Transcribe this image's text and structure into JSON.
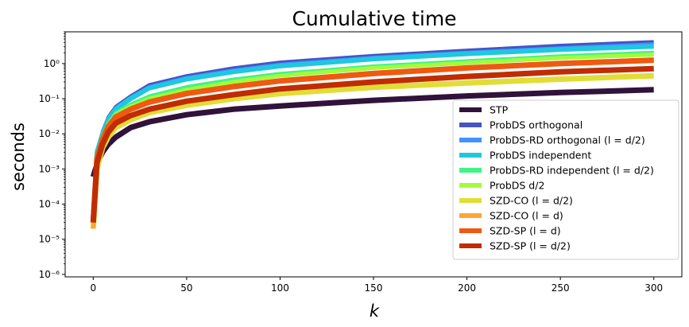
{
  "chart_data": {
    "type": "line",
    "title": "Cumulative time",
    "xlabel": "k",
    "ylabel": "seconds",
    "xlim": [
      -15,
      315
    ],
    "ylim": [
      8.5e-07,
      8
    ],
    "yscale": "log",
    "x_ticks": [
      0,
      50,
      100,
      150,
      200,
      250,
      300
    ],
    "y_ticks": [
      {
        "value": 1e-06,
        "label": "10⁻⁶"
      },
      {
        "value": 1e-05,
        "label": "10⁻⁵"
      },
      {
        "value": 0.0001,
        "label": "10⁻⁴"
      },
      {
        "value": 0.001,
        "label": "10⁻³"
      },
      {
        "value": 0.01,
        "label": "10⁻²"
      },
      {
        "value": 0.1,
        "label": "10⁻¹"
      },
      {
        "value": 1,
        "label": "10⁰"
      }
    ],
    "grid": false,
    "legend_position": "lower-right",
    "series": [
      {
        "name": "STP",
        "color": "#30123b",
        "width": 7,
        "points": [
          [
            0,
            0.0006
          ],
          [
            1,
            0.0009
          ],
          [
            2,
            0.0013
          ],
          [
            3,
            0.0018
          ],
          [
            5,
            0.003
          ],
          [
            8,
            0.005
          ],
          [
            12,
            0.008
          ],
          [
            20,
            0.015
          ],
          [
            30,
            0.022
          ],
          [
            50,
            0.035
          ],
          [
            75,
            0.05
          ],
          [
            100,
            0.062
          ],
          [
            150,
            0.09
          ],
          [
            200,
            0.12
          ],
          [
            250,
            0.15
          ],
          [
            300,
            0.18
          ]
        ]
      },
      {
        "name": "ProbDS orthogonal",
        "color": "#4454c4",
        "width": 4,
        "points": [
          [
            0,
            2e-05
          ],
          [
            2,
            0.003
          ],
          [
            5,
            0.012
          ],
          [
            8,
            0.03
          ],
          [
            12,
            0.06
          ],
          [
            20,
            0.12
          ],
          [
            30,
            0.25
          ],
          [
            50,
            0.45
          ],
          [
            75,
            0.75
          ],
          [
            100,
            1.1
          ],
          [
            150,
            1.7
          ],
          [
            200,
            2.4
          ],
          [
            250,
            3.3
          ],
          [
            300,
            4.2
          ]
        ]
      },
      {
        "name": "ProbDS-RD orthogonal (l = d/2)",
        "color": "#4490fe",
        "width": 4,
        "points": [
          [
            0,
            2e-05
          ],
          [
            2,
            0.003
          ],
          [
            5,
            0.011
          ],
          [
            8,
            0.028
          ],
          [
            12,
            0.055
          ],
          [
            20,
            0.11
          ],
          [
            30,
            0.22
          ],
          [
            50,
            0.4
          ],
          [
            75,
            0.65
          ],
          [
            100,
            0.95
          ],
          [
            150,
            1.5
          ],
          [
            200,
            2.1
          ],
          [
            250,
            2.8
          ],
          [
            300,
            3.6
          ]
        ]
      },
      {
        "name": "ProbDS independent",
        "color": "#1fc8de",
        "width": 6,
        "points": [
          [
            0,
            2e-05
          ],
          [
            2,
            0.003
          ],
          [
            5,
            0.01
          ],
          [
            8,
            0.025
          ],
          [
            12,
            0.05
          ],
          [
            20,
            0.1
          ],
          [
            30,
            0.2
          ],
          [
            50,
            0.36
          ],
          [
            75,
            0.58
          ],
          [
            100,
            0.85
          ],
          [
            150,
            1.35
          ],
          [
            200,
            1.9
          ],
          [
            250,
            2.5
          ],
          [
            300,
            3.1
          ]
        ]
      },
      {
        "name": "ProbDS-RD independent (l = d/2)",
        "color": "#40f486",
        "width": 4,
        "points": [
          [
            0,
            2e-05
          ],
          [
            2,
            0.0025
          ],
          [
            5,
            0.009
          ],
          [
            8,
            0.02
          ],
          [
            12,
            0.04
          ],
          [
            20,
            0.07
          ],
          [
            30,
            0.12
          ],
          [
            50,
            0.22
          ],
          [
            75,
            0.36
          ],
          [
            100,
            0.52
          ],
          [
            150,
            0.85
          ],
          [
            200,
            1.2
          ],
          [
            250,
            1.65
          ],
          [
            300,
            2.1
          ]
        ]
      },
      {
        "name": "ProbDS d/2",
        "color": "#a2fc3c",
        "width": 5,
        "points": [
          [
            0,
            2e-05
          ],
          [
            2,
            0.0025
          ],
          [
            5,
            0.008
          ],
          [
            8,
            0.018
          ],
          [
            12,
            0.035
          ],
          [
            20,
            0.06
          ],
          [
            30,
            0.1
          ],
          [
            50,
            0.18
          ],
          [
            75,
            0.3
          ],
          [
            100,
            0.45
          ],
          [
            150,
            0.75
          ],
          [
            200,
            1.05
          ],
          [
            250,
            1.45
          ],
          [
            300,
            1.8
          ]
        ]
      },
      {
        "name": "SZD-CO (l = d/2)",
        "color": "#e1dd37",
        "width": 7,
        "points": [
          [
            0,
            2e-05
          ],
          [
            2,
            0.001
          ],
          [
            5,
            0.004
          ],
          [
            8,
            0.008
          ],
          [
            12,
            0.015
          ],
          [
            20,
            0.025
          ],
          [
            30,
            0.04
          ],
          [
            50,
            0.065
          ],
          [
            75,
            0.1
          ],
          [
            100,
            0.14
          ],
          [
            150,
            0.21
          ],
          [
            200,
            0.28
          ],
          [
            250,
            0.36
          ],
          [
            300,
            0.45
          ]
        ]
      },
      {
        "name": "SZD-CO (l = d)",
        "color": "#fea632",
        "width": 5,
        "points": [
          [
            0,
            2e-05
          ],
          [
            2,
            0.002
          ],
          [
            5,
            0.007
          ],
          [
            8,
            0.015
          ],
          [
            12,
            0.03
          ],
          [
            20,
            0.05
          ],
          [
            30,
            0.08
          ],
          [
            50,
            0.14
          ],
          [
            75,
            0.23
          ],
          [
            100,
            0.33
          ],
          [
            150,
            0.55
          ],
          [
            200,
            0.78
          ],
          [
            250,
            1.05
          ],
          [
            300,
            1.3
          ]
        ]
      },
      {
        "name": "SZD-SP (l = d)",
        "color": "#ef5911",
        "width": 7,
        "points": [
          [
            0,
            3e-05
          ],
          [
            2,
            0.002
          ],
          [
            5,
            0.007
          ],
          [
            8,
            0.016
          ],
          [
            12,
            0.03
          ],
          [
            20,
            0.05
          ],
          [
            30,
            0.08
          ],
          [
            50,
            0.14
          ],
          [
            75,
            0.22
          ],
          [
            100,
            0.32
          ],
          [
            150,
            0.52
          ],
          [
            200,
            0.75
          ],
          [
            250,
            1.0
          ],
          [
            300,
            1.25
          ]
        ]
      },
      {
        "name": "SZD-SP (l = d/2)",
        "color": "#c02c03",
        "width": 7,
        "points": [
          [
            0,
            3e-05
          ],
          [
            2,
            0.0015
          ],
          [
            5,
            0.005
          ],
          [
            8,
            0.011
          ],
          [
            12,
            0.02
          ],
          [
            20,
            0.033
          ],
          [
            30,
            0.05
          ],
          [
            50,
            0.085
          ],
          [
            75,
            0.13
          ],
          [
            100,
            0.19
          ],
          [
            150,
            0.3
          ],
          [
            200,
            0.43
          ],
          [
            250,
            0.58
          ],
          [
            300,
            0.72
          ]
        ]
      }
    ]
  }
}
